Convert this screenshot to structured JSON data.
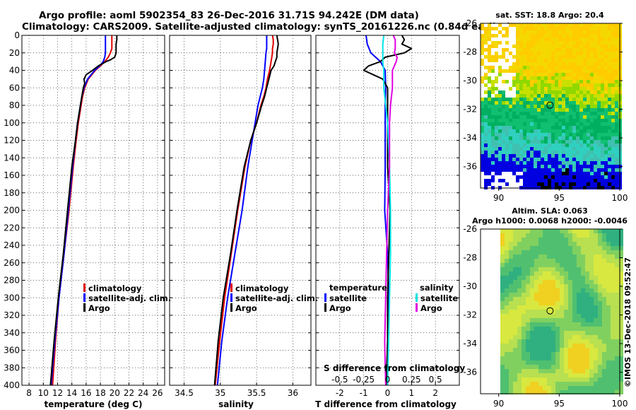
{
  "header": {
    "line1": "Argo profile: aoml 5902354_83 26-Dec-2016 31.71S 94.242E (DM data)",
    "line2": "Climatology: CARS2009. Satellite-adjusted climatology: synTS_20161226.nc (0.84d earlier)"
  },
  "colors": {
    "climatology": "#e00000",
    "satellite": "#0000ff",
    "argo": "#000000",
    "sal_satellite": "#00e5e5",
    "sal_argo": "#e000e0"
  },
  "depth_ticks": [
    "0",
    "20",
    "40",
    "60",
    "80",
    "100",
    "120",
    "140",
    "160",
    "180",
    "200",
    "220",
    "240",
    "260",
    "280",
    "300",
    "320",
    "340",
    "360",
    "380",
    "400"
  ],
  "chart_data": [
    {
      "type": "line",
      "id": "temperature",
      "xlabel": "temperature (deg C)",
      "ylabel": "",
      "xlim": [
        7,
        27
      ],
      "ylim": [
        400,
        0
      ],
      "xticks": [
        "8",
        "10",
        "12",
        "14",
        "16",
        "18",
        "20",
        "22",
        "24",
        "26"
      ],
      "legend": [
        "climatology",
        "satellite-adj. clim.",
        "Argo"
      ],
      "series": [
        {
          "name": "climatology",
          "depth": [
            0,
            5,
            10,
            15,
            20,
            25,
            30,
            35,
            40,
            50,
            60,
            70,
            80,
            100,
            120,
            150,
            200,
            250,
            300,
            350,
            400
          ],
          "values": [
            19.6,
            19.6,
            19.6,
            19.6,
            19.4,
            19.1,
            18.6,
            18.0,
            17.3,
            16.3,
            15.8,
            15.5,
            15.3,
            14.9,
            14.6,
            14.2,
            13.6,
            12.9,
            12.2,
            11.7,
            11.3
          ]
        },
        {
          "name": "satellite-adj. clim.",
          "depth": [
            0,
            5,
            10,
            15,
            20,
            25,
            30,
            35,
            40,
            50,
            60,
            70,
            80,
            100,
            120,
            150,
            200,
            250,
            300,
            350,
            400
          ],
          "values": [
            18.7,
            18.7,
            18.7,
            18.7,
            18.7,
            18.6,
            18.4,
            17.9,
            17.2,
            16.2,
            15.7,
            15.4,
            15.2,
            14.8,
            14.5,
            14.1,
            13.5,
            12.9,
            12.2,
            11.6,
            11.1
          ]
        },
        {
          "name": "Argo",
          "depth": [
            0,
            5,
            10,
            15,
            20,
            25,
            28,
            30,
            35,
            40,
            45,
            50,
            55,
            60,
            70,
            80,
            100,
            120,
            150,
            200,
            250,
            300,
            350,
            400
          ],
          "values": [
            20.3,
            20.3,
            20.2,
            20.2,
            20.2,
            20.0,
            19.4,
            18.8,
            17.7,
            16.9,
            16.0,
            15.7,
            15.8,
            15.6,
            15.4,
            15.2,
            14.8,
            14.5,
            14.0,
            13.4,
            12.8,
            12.1,
            11.5,
            11.0
          ]
        }
      ]
    },
    {
      "type": "line",
      "id": "salinity",
      "xlabel": "salinity",
      "ylabel": "",
      "xlim": [
        34.3,
        36.25
      ],
      "ylim": [
        400,
        0
      ],
      "xticks": [
        "34.5",
        "35",
        "35.5",
        "36"
      ],
      "legend": [
        "climatology",
        "satellite-adj. clim.",
        "Argo"
      ],
      "series": [
        {
          "name": "climatology",
          "depth": [
            0,
            5,
            10,
            15,
            20,
            30,
            40,
            50,
            60,
            70,
            80,
            100,
            120,
            150,
            200,
            250,
            300,
            350,
            400
          ],
          "values": [
            35.72,
            35.73,
            35.73,
            35.72,
            35.72,
            35.7,
            35.68,
            35.65,
            35.63,
            35.6,
            35.56,
            35.5,
            35.42,
            35.34,
            35.24,
            35.15,
            35.06,
            34.99,
            34.93
          ]
        },
        {
          "name": "satellite-adj. clim.",
          "depth": [
            0,
            5,
            10,
            15,
            20,
            30,
            40,
            50,
            60,
            70,
            80,
            100,
            120,
            150,
            200,
            250,
            300,
            350,
            400
          ],
          "values": [
            35.64,
            35.64,
            35.64,
            35.64,
            35.63,
            35.62,
            35.61,
            35.6,
            35.58,
            35.55,
            35.52,
            35.48,
            35.44,
            35.38,
            35.3,
            35.2,
            35.1,
            35.02,
            34.96
          ]
        },
        {
          "name": "Argo",
          "depth": [
            0,
            5,
            10,
            15,
            20,
            25,
            30,
            35,
            40,
            50,
            60,
            70,
            80,
            100,
            120,
            150,
            200,
            250,
            300,
            350,
            400
          ],
          "values": [
            35.78,
            35.79,
            35.8,
            35.79,
            35.78,
            35.78,
            35.76,
            35.74,
            35.7,
            35.67,
            35.64,
            35.61,
            35.57,
            35.5,
            35.42,
            35.33,
            35.23,
            35.14,
            35.04,
            34.97,
            34.92
          ]
        }
      ]
    },
    {
      "type": "line",
      "id": "difference",
      "xlabel": "T difference from climatology",
      "xlabel_top": "S difference from climatology",
      "ylabel": "",
      "xlim": [
        -3,
        3
      ],
      "ylim": [
        400,
        0
      ],
      "xticks": [
        "-2",
        "-1",
        "0",
        "1",
        "2"
      ],
      "xticks_top": [
        "-0.5",
        "-0.25",
        "0",
        "0.25",
        "0.5"
      ],
      "legend_left": {
        "title": "temperature",
        "items": [
          "satellite",
          "Argo"
        ]
      },
      "legend_right": {
        "title": "salinity",
        "items": [
          "satellite",
          "Argo"
        ]
      },
      "series": [
        {
          "name": "temperature satellite",
          "depth": [
            0,
            10,
            20,
            30,
            40,
            60,
            80,
            100,
            150,
            200,
            250,
            300,
            350,
            400
          ],
          "values": [
            -0.9,
            -0.85,
            -0.7,
            -0.3,
            -0.1,
            -0.08,
            -0.1,
            -0.1,
            -0.1,
            -0.12,
            0.0,
            0.05,
            0.0,
            -0.05
          ]
        },
        {
          "name": "temperature Argo",
          "depth": [
            0,
            5,
            10,
            15,
            20,
            25,
            30,
            35,
            40,
            45,
            50,
            60,
            80,
            100,
            150,
            200,
            250,
            300,
            350,
            400
          ],
          "values": [
            0.6,
            0.7,
            0.6,
            1.0,
            0.7,
            -0.1,
            -0.3,
            -0.8,
            -1.0,
            -0.6,
            -0.2,
            0.0,
            0.0,
            0.0,
            0.0,
            0.1,
            0.05,
            0.0,
            0.0,
            -0.05
          ]
        },
        {
          "name": "salinity satellite",
          "depth": [
            0,
            10,
            20,
            30,
            40,
            60,
            80,
            100,
            150,
            200,
            250,
            300,
            350,
            400
          ],
          "values": [
            -0.04,
            -0.05,
            -0.05,
            -0.05,
            -0.04,
            -0.04,
            -0.02,
            0.0,
            0.02,
            0.03,
            0.03,
            0.02,
            0.01,
            0.0
          ]
        },
        {
          "name": "salinity Argo",
          "depth": [
            0,
            5,
            10,
            15,
            20,
            25,
            30,
            40,
            50,
            60,
            80,
            100,
            150,
            200,
            250,
            300,
            350,
            400
          ],
          "values": [
            0.06,
            0.08,
            0.08,
            0.08,
            0.07,
            0.1,
            0.09,
            0.05,
            0.05,
            0.05,
            0.03,
            0.02,
            0.02,
            0.0,
            -0.01,
            -0.02,
            -0.03,
            -0.02
          ]
        }
      ]
    },
    {
      "type": "heatmap",
      "id": "sst-map",
      "title": "sat. SST: 18.8 Argo: 20.4",
      "xlim": [
        88.5,
        100
      ],
      "ylim": [
        -37.5,
        -26
      ],
      "xticks": [
        "90",
        "95",
        "100"
      ],
      "yticks": [
        "-26",
        "-28",
        "-30",
        "-32",
        "-34",
        "-36"
      ],
      "marker": {
        "lon": 94.242,
        "lat": -31.71
      }
    },
    {
      "type": "heatmap",
      "id": "sla-map",
      "title": "Altim. SLA: 0.063",
      "subtitle": "Argo h1000: 0.0068 h2000: -0.0046",
      "xlim": [
        88.5,
        100
      ],
      "ylim": [
        -37.5,
        -26
      ],
      "xticks": [
        "90",
        "95",
        "100"
      ],
      "yticks": [
        "-26",
        "-28",
        "-30",
        "-32",
        "-34",
        "-36"
      ],
      "marker": {
        "lon": 94.242,
        "lat": -31.71
      }
    }
  ],
  "credit": "©IMOS 13-Dec-2018 09:52:47"
}
